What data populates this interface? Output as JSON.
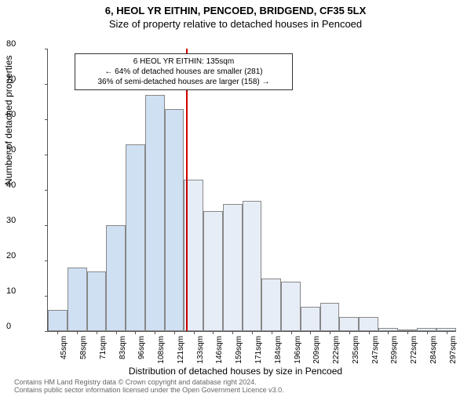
{
  "title_line1": "6, HEOL YR EITHIN, PENCOED, BRIDGEND, CF35 5LX",
  "title_line2": "Size of property relative to detached houses in Pencoed",
  "ylabel": "Number of detached properties",
  "xlabel": "Distribution of detached houses by size in Pencoed",
  "footer_line1": "Contains HM Land Registry data © Crown copyright and database right 2024.",
  "footer_line2": "Contains public sector information licensed under the Open Government Licence v3.0.",
  "annot": {
    "line1": "6 HEOL YR EITHIN: 135sqm",
    "line2": "← 64% of detached houses are smaller (281)",
    "line3": "36% of semi-detached houses are larger (158) →"
  },
  "chart": {
    "type": "histogram",
    "ylim": [
      0,
      80
    ],
    "ytick_step": 10,
    "background_color": "#ffffff",
    "axis_color": "#555555",
    "ref_line_color": "#cc0000",
    "ref_line_x_index": 7.15,
    "bar_border_color": "#888888",
    "label_fontsize": 12,
    "tick_fontsize": 10,
    "categories": [
      "45sqm",
      "58sqm",
      "71sqm",
      "83sqm",
      "96sqm",
      "108sqm",
      "121sqm",
      "133sqm",
      "146sqm",
      "159sqm",
      "171sqm",
      "184sqm",
      "196sqm",
      "209sqm",
      "222sqm",
      "235sqm",
      "247sqm",
      "259sqm",
      "272sqm",
      "284sqm",
      "297sqm"
    ],
    "values": [
      6,
      18,
      17,
      30,
      53,
      67,
      63,
      43,
      34,
      36,
      37,
      15,
      14,
      7,
      8,
      4,
      4,
      1,
      0,
      1,
      1
    ],
    "bar_color_left": "#cfe0f3",
    "bar_color_right": "#e6edf7"
  }
}
